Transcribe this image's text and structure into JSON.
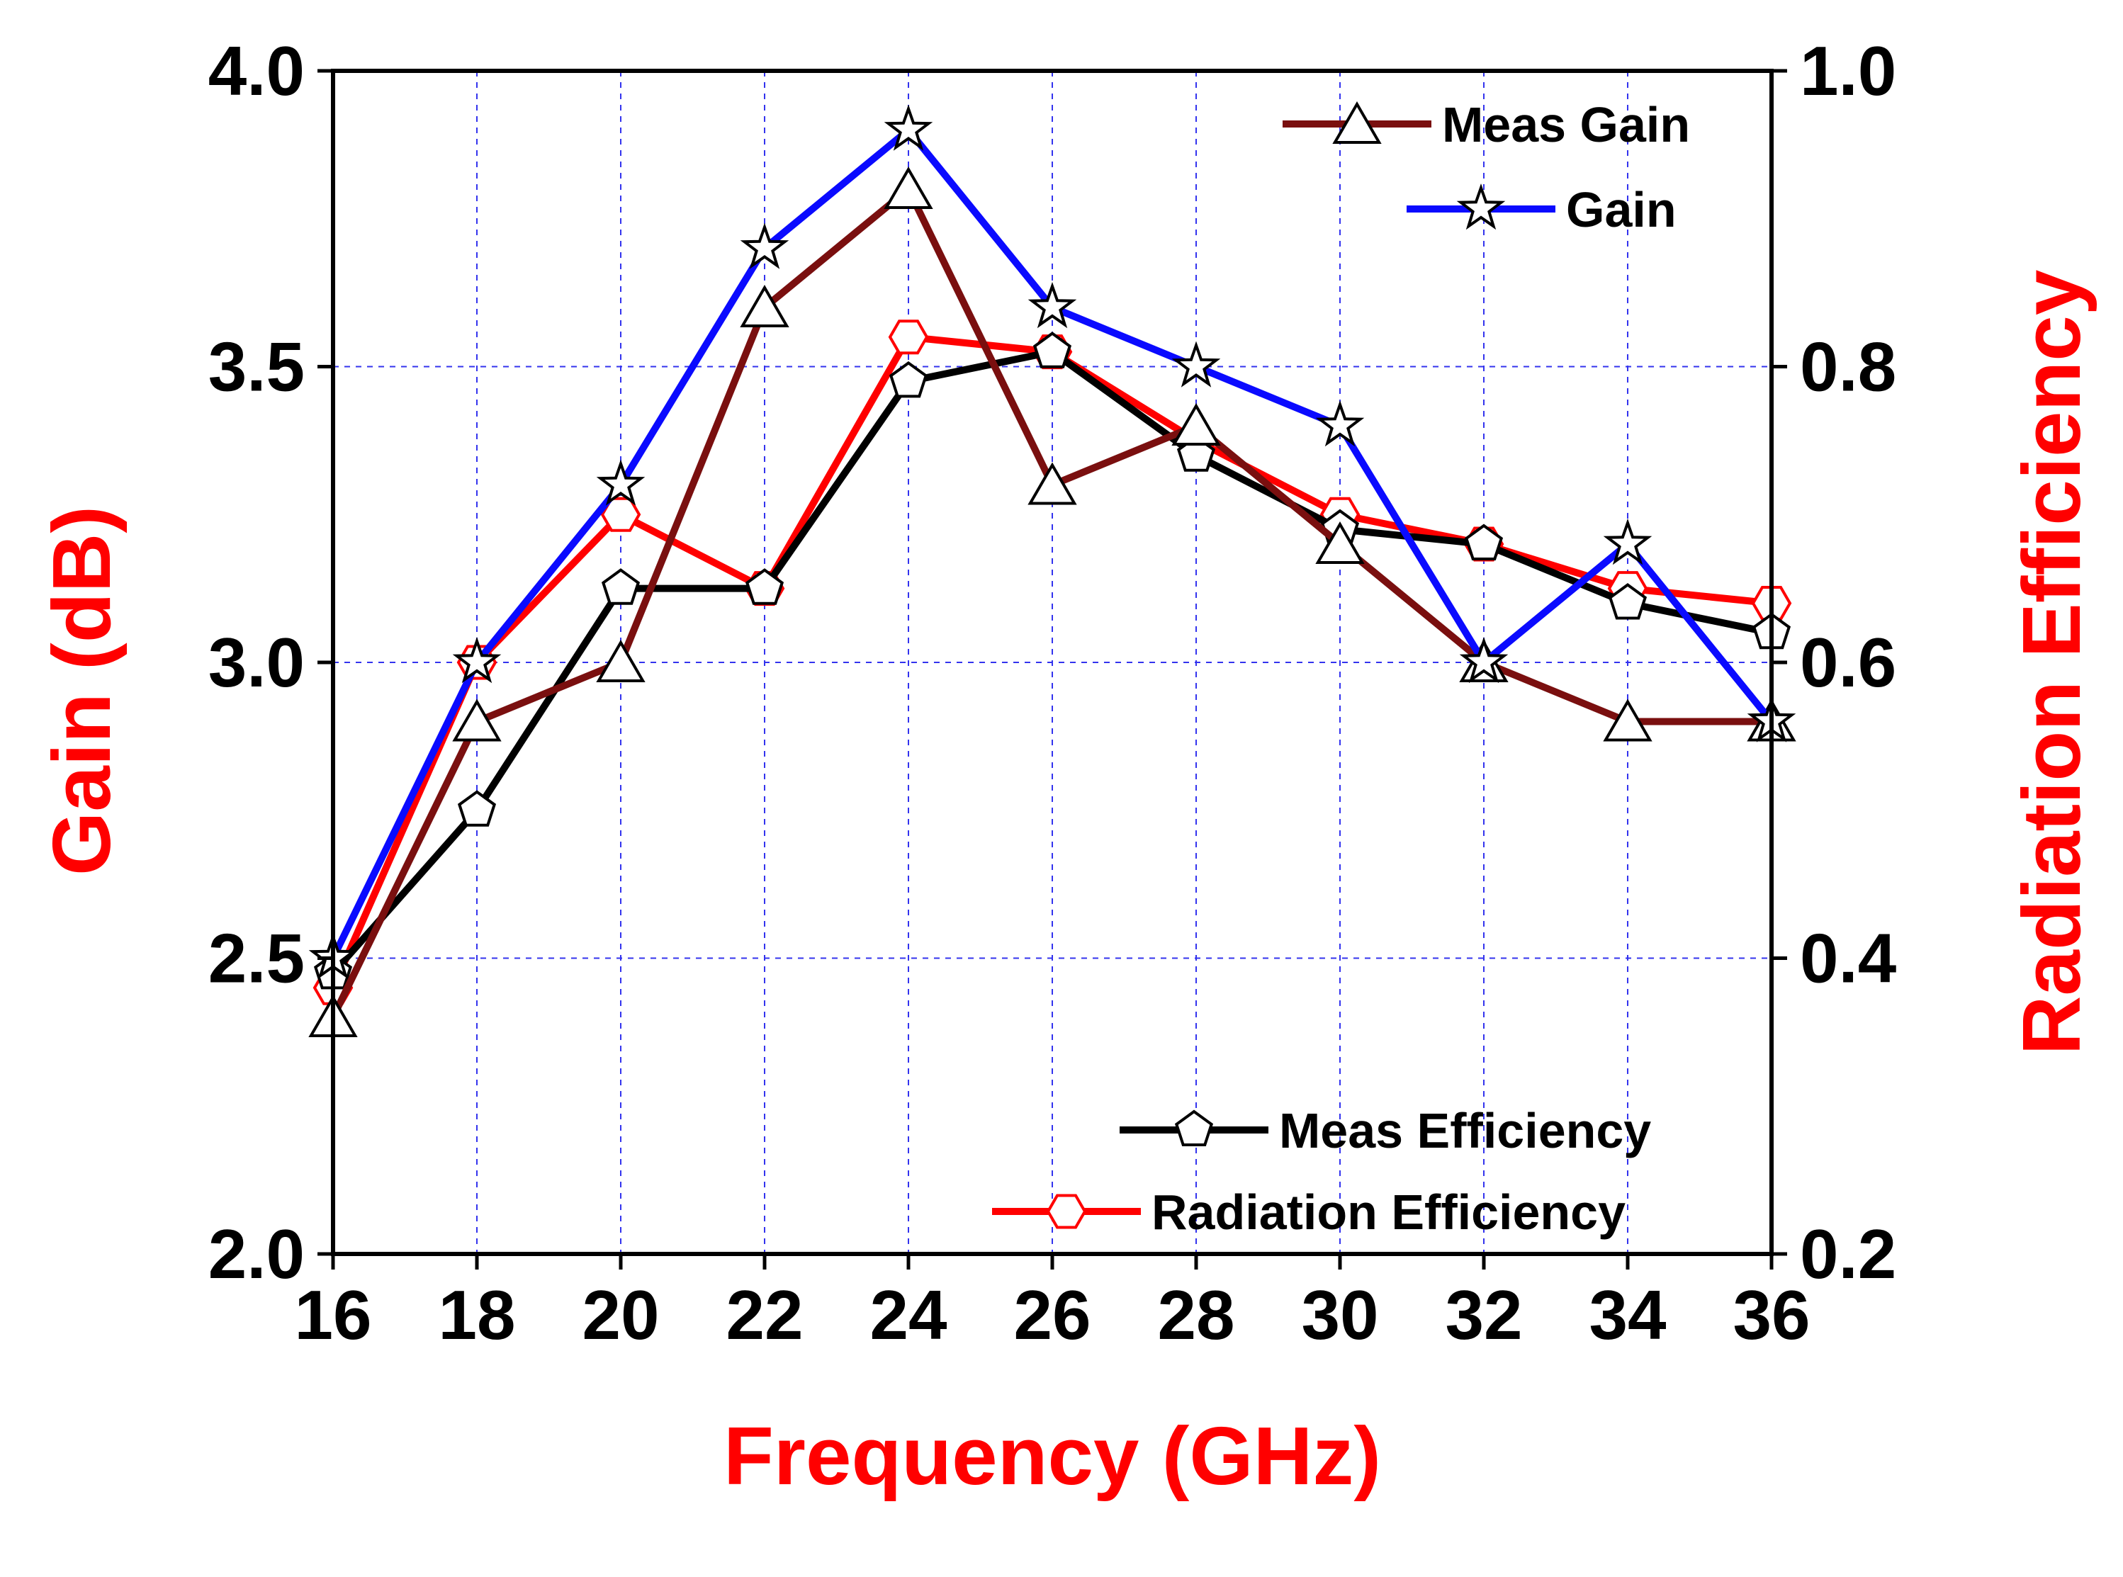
{
  "chart_data": {
    "type": "line",
    "x": [
      16,
      18,
      20,
      22,
      24,
      26,
      28,
      30,
      32,
      34,
      36
    ],
    "xlabel": "Frequency (GHz)",
    "xlim": [
      16,
      36
    ],
    "xticks": [
      "16",
      "18",
      "20",
      "22",
      "24",
      "26",
      "28",
      "30",
      "32",
      "34",
      "36"
    ],
    "ylabel_left": "Gain (dB)",
    "ylim_left": [
      2.0,
      4.0
    ],
    "yticks_left": [
      "2.0",
      "2.5",
      "3.0",
      "3.5",
      "4.0"
    ],
    "ylabel_right": "Radiation Efficiency",
    "ylim_right": [
      0.2,
      1.0
    ],
    "yticks_right": [
      "0.2",
      "0.4",
      "0.6",
      "0.8",
      "1.0"
    ],
    "grid": true,
    "axis_title_color": "#ff0000",
    "series": [
      {
        "name": "Meas Gain",
        "axis": "left",
        "color": "#7a0f0f",
        "marker": "triangle",
        "values": [
          2.4,
          2.9,
          3.0,
          3.6,
          3.8,
          3.3,
          3.4,
          3.2,
          3.0,
          2.9,
          2.9
        ]
      },
      {
        "name": "Gain",
        "axis": "left",
        "color": "#0a0aff",
        "marker": "star",
        "values": [
          2.5,
          3.0,
          3.3,
          3.7,
          3.9,
          3.6,
          3.5,
          3.4,
          3.0,
          3.2,
          2.9
        ]
      },
      {
        "name": "Meas Efficiency",
        "axis": "right",
        "color": "#000000",
        "marker": "pentagon",
        "values": [
          0.39,
          0.5,
          0.65,
          0.65,
          0.79,
          0.81,
          0.74,
          0.69,
          0.68,
          0.64,
          0.62
        ]
      },
      {
        "name": "Radiation Efficiency",
        "axis": "right",
        "color": "#ff0000",
        "marker": "hexagon",
        "values": [
          0.38,
          0.6,
          0.7,
          0.65,
          0.82,
          0.81,
          0.75,
          0.7,
          0.68,
          0.65,
          0.64
        ]
      }
    ],
    "legend": [
      {
        "group": "top-right",
        "entries": [
          "Meas Gain",
          "Gain"
        ]
      },
      {
        "group": "bottom-right",
        "entries": [
          "Meas Efficiency",
          "Radiation Efficiency"
        ]
      }
    ]
  }
}
